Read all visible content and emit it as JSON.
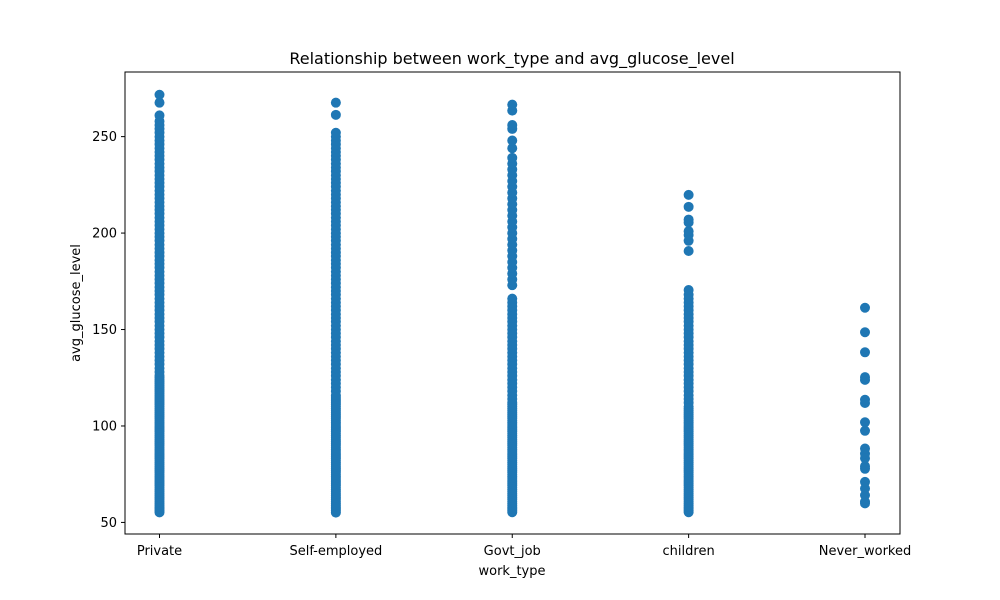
{
  "chart_data": {
    "type": "scatter",
    "title": "Relationship between work_type and avg_glucose_level",
    "xlabel": "work_type",
    "ylabel": "avg_glucose_level",
    "categories": [
      "Private",
      "Self-employed",
      "Govt_job",
      "children",
      "Never_worked"
    ],
    "yticks": [
      50,
      100,
      150,
      200,
      250
    ],
    "ylim": [
      44.0,
      283.5
    ],
    "grid": false,
    "marker_color": "#1f77b4",
    "series": [
      {
        "category": "Private",
        "y": [
          55.2,
          56,
          57,
          58,
          59,
          60,
          61,
          62,
          63,
          64,
          65,
          66,
          67,
          68,
          69,
          70,
          71,
          72,
          73,
          74,
          75,
          76,
          77,
          78,
          79,
          80,
          81,
          82,
          83,
          84,
          85,
          86,
          87,
          88,
          89,
          90,
          91,
          92,
          93,
          94,
          95,
          96,
          97,
          98,
          99,
          100,
          101,
          102,
          103,
          104,
          105,
          106,
          107,
          108,
          109,
          110,
          111,
          112,
          113,
          114,
          115,
          116,
          117,
          118,
          119,
          120,
          121,
          122,
          123,
          124,
          125,
          126,
          128,
          130,
          132,
          134,
          136,
          138,
          140,
          142,
          144,
          146,
          148,
          150,
          152,
          154,
          156,
          158,
          160,
          162,
          164,
          166,
          168,
          170,
          172,
          174,
          176,
          178,
          180,
          182,
          184,
          186,
          188,
          190,
          192,
          194,
          196,
          198,
          200,
          202,
          204,
          206,
          208,
          210,
          212,
          214,
          216,
          218,
          220,
          222,
          224,
          226,
          228,
          230,
          232,
          234,
          236,
          238,
          240,
          242,
          244,
          246,
          248,
          250,
          252,
          254,
          256,
          258,
          261,
          267.6,
          271.7
        ]
      },
      {
        "category": "Self-employed",
        "y": [
          55.1,
          56,
          57,
          58,
          59,
          60,
          61,
          62,
          63,
          64,
          65,
          66,
          67,
          68,
          69,
          70,
          71,
          72,
          73,
          74,
          75,
          76,
          77,
          78,
          79,
          80,
          81,
          82,
          83,
          84,
          85,
          86,
          87,
          88,
          89,
          90,
          91,
          92,
          93,
          94,
          95,
          96,
          97,
          98,
          99,
          100,
          101,
          102,
          103,
          104,
          105,
          106,
          107,
          108,
          109,
          110,
          111,
          112,
          113,
          114,
          115,
          116,
          118,
          120,
          122,
          124,
          126,
          128,
          130,
          132,
          134,
          136,
          138,
          140,
          142,
          144,
          146,
          148,
          150,
          152,
          154,
          156,
          158,
          160,
          162,
          164,
          166,
          168,
          170,
          172,
          174,
          176,
          178,
          180,
          182,
          184,
          186,
          188,
          190,
          192,
          194,
          196,
          198,
          200,
          202,
          204,
          206,
          208,
          210,
          212,
          214,
          216,
          218,
          220,
          222,
          224,
          226,
          228,
          230,
          232,
          234,
          236,
          238,
          240,
          242,
          244,
          246,
          248,
          250,
          252,
          261.3,
          267.6
        ]
      },
      {
        "category": "Govt_job",
        "y": [
          55.3,
          56,
          57,
          58,
          59,
          60,
          61,
          62,
          63,
          64,
          65,
          66,
          67,
          68,
          69,
          70,
          71,
          72,
          73,
          74,
          75,
          76,
          77,
          78,
          79,
          80,
          81,
          82,
          83,
          84,
          85,
          86,
          87,
          88,
          89,
          90,
          91,
          92,
          93,
          94,
          95,
          96,
          97,
          98,
          99,
          100,
          101,
          102,
          103,
          104,
          105,
          106,
          107,
          108,
          109,
          110,
          111,
          112,
          114,
          116,
          118,
          120,
          122,
          124,
          126,
          128,
          130,
          132,
          134,
          136,
          138,
          140,
          142,
          144,
          146,
          148,
          150,
          152,
          154,
          156,
          158,
          160,
          162,
          164,
          166,
          173,
          176,
          179,
          182,
          185,
          188,
          191,
          194,
          197,
          200,
          203,
          206,
          209,
          212,
          215,
          218,
          221,
          224,
          227,
          230,
          233,
          236,
          239,
          244,
          248,
          254,
          256,
          263.5,
          266.6
        ]
      },
      {
        "category": "children",
        "y": [
          55.3,
          56,
          57,
          58,
          59,
          60,
          61,
          62,
          63,
          64,
          65,
          66,
          67,
          68,
          69,
          70,
          71,
          72,
          73,
          74,
          75,
          76,
          77,
          78,
          79,
          80,
          81,
          82,
          83,
          84,
          85,
          86,
          87,
          88,
          89,
          90,
          91,
          92,
          93,
          94,
          95,
          96,
          97,
          98,
          99,
          100,
          101,
          102,
          103,
          104,
          105,
          106,
          107,
          108,
          109,
          110,
          112,
          114,
          116,
          118,
          120,
          122,
          124,
          126,
          128,
          130,
          132,
          134,
          136,
          138,
          140,
          142,
          144,
          146,
          148,
          150,
          152,
          154,
          156,
          158,
          160,
          162,
          164,
          166,
          168,
          170.5,
          190.7,
          196,
          199,
          201,
          205.5,
          207,
          213.6,
          219.8
        ]
      },
      {
        "category": "Never_worked",
        "y": [
          59.9,
          60.7,
          64.1,
          67.6,
          71.0,
          77.8,
          79.2,
          83.3,
          85.6,
          88.3,
          97.5,
          101.9,
          111.9,
          113.6,
          123.9,
          125.3,
          138.2,
          148.6,
          161.3
        ]
      }
    ]
  }
}
